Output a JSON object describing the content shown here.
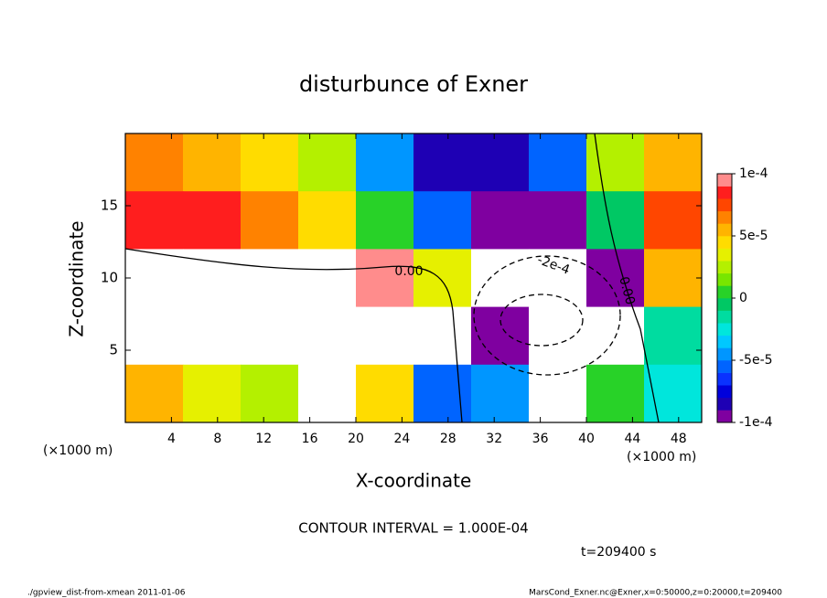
{
  "chart_data": {
    "type": "contour",
    "title": "disturbunce of Exner",
    "x_label": "X-coordinate",
    "y_label": "Z-coordinate",
    "x_unit_left": "(×1000 m)",
    "x_unit_right": "(×1000 m)",
    "contour_interval": "CONTOUR INTERVAL = 1.000E-04",
    "time_label": "t=209400 s",
    "footer_left": "./gpview_dist-from-xmean  2011-01-06",
    "footer_right": "MarsCond_Exner.nc@Exner,x=0:50000,z=0:20000,t=209400",
    "contour_labels": [
      "0.00",
      "-2e-4",
      "0.00"
    ],
    "x": [
      2.5,
      7.5,
      12.5,
      17.5,
      22.5,
      27.5,
      32.5,
      37.5,
      42.5,
      47.5
    ],
    "y": [
      18,
      14,
      10,
      6,
      2
    ],
    "z": [
      [
        6e-05,
        5e-05,
        4e-05,
        2e-05,
        -5e-05,
        -8e-05,
        -8e-05,
        -6e-05,
        2e-05,
        5e-05
      ],
      [
        8e-05,
        8e-05,
        6e-05,
        4e-05,
        0,
        -6e-05,
        -9e-05,
        -0.0001,
        -1e-05,
        7e-05
      ],
      [
        0.00015,
        0.00015,
        0.00015,
        0.00012,
        0.0001,
        3e-05,
        -0.0002,
        -0.00025,
        -0.0001,
        5e-05
      ],
      [
        0.00012,
        0.00012,
        0.00012,
        0.00012,
        0.00012,
        0.00012,
        -0.0001,
        -0.0003,
        -0.00015,
        -2e-05
      ],
      [
        5e-05,
        3e-05,
        2e-05,
        0.00012,
        4e-05,
        -6e-05,
        -5e-05,
        -0.00015,
        0,
        -3e-05
      ]
    ],
    "xlim": [
      0,
      50
    ],
    "ylim": [
      0,
      20
    ],
    "xticks": [
      4,
      8,
      12,
      16,
      20,
      24,
      28,
      32,
      36,
      40,
      44,
      48
    ],
    "yticks": [
      5,
      10,
      15
    ],
    "clim": [
      -0.0001,
      0.0001
    ],
    "cticks": [
      {
        "value": 0.0001,
        "label": "1e-4"
      },
      {
        "value": 5e-05,
        "label": "5e-5"
      },
      0,
      {
        "value": -5e-05,
        "label": "-5e-5"
      },
      {
        "value": -0.0001,
        "label": "-1e-4"
      }
    ],
    "colormap": [
      "#7f00a0",
      "#1e00b4",
      "#0000dc",
      "#0a32ff",
      "#0064ff",
      "#0096ff",
      "#00c8ff",
      "#00e6dc",
      "#00dca0",
      "#00c864",
      "#28d228",
      "#78e600",
      "#b4f000",
      "#e6f000",
      "#ffdc00",
      "#ffb400",
      "#ff8200",
      "#ff4600",
      "#ff1e1e",
      "#ff8c8c"
    ],
    "out_of_range_color": "#ffffff"
  }
}
